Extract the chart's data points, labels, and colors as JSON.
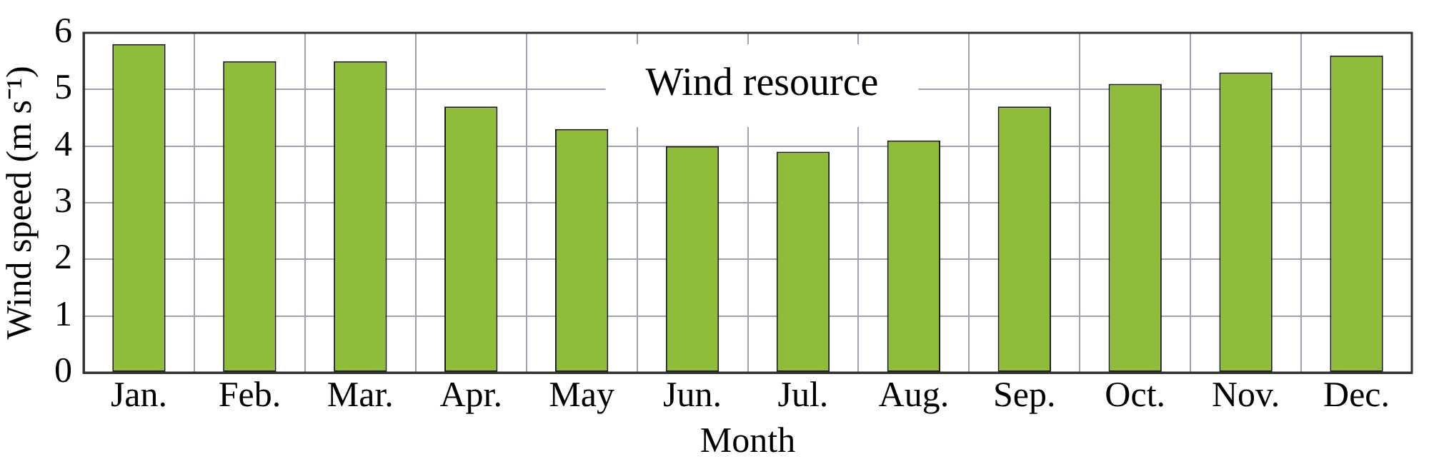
{
  "chart_data": {
    "type": "bar",
    "title": "Wind resource",
    "xlabel": "Month",
    "ylabel": "Wind speed (m s⁻¹)",
    "categories": [
      "Jan.",
      "Feb.",
      "Mar.",
      "Apr.",
      "May",
      "Jun.",
      "Jul.",
      "Aug.",
      "Sep.",
      "Oct.",
      "Nov.",
      "Dec."
    ],
    "values": [
      5.8,
      5.5,
      5.5,
      4.7,
      4.3,
      4.0,
      3.9,
      4.1,
      4.7,
      5.1,
      5.3,
      5.6
    ],
    "color": "#8fbc3a",
    "ylim": [
      0,
      6
    ],
    "yticks": [
      0,
      1,
      2,
      3,
      4,
      5,
      6
    ],
    "grid": true
  }
}
